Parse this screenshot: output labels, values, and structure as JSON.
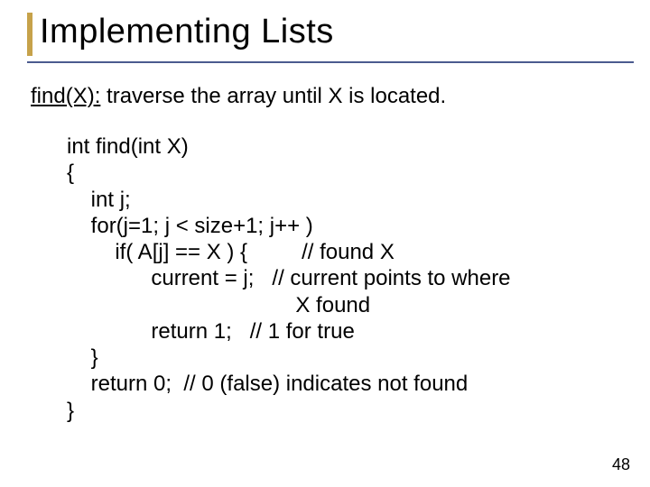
{
  "slide": {
    "title": "Implementing Lists",
    "title_fontsize": 38,
    "accent_bar_color": "#c6a24a",
    "underline_color": "#4b5b8f",
    "desc_fn": "find(X):",
    "desc_rest": " traverse the array until X is located.",
    "desc_fontsize": 24,
    "code_fontsize": 24,
    "code": {
      "l1": "int find(int X)",
      "l2": "{",
      "l3": "    int j;",
      "l4": "    for(j=1; j < size+1; j++ )",
      "l5": "        if( A[j] == X ) {         // found X",
      "l6": "              current = j;   // current points to where",
      "l7": "                                      X found",
      "l8": "              return 1;   // 1 for true",
      "l9": "    }",
      "l10": "    return 0;  // 0 (false) indicates not found",
      "l11": "}"
    },
    "page_number": "48",
    "background_color": "#ffffff",
    "text_color": "#000000"
  }
}
